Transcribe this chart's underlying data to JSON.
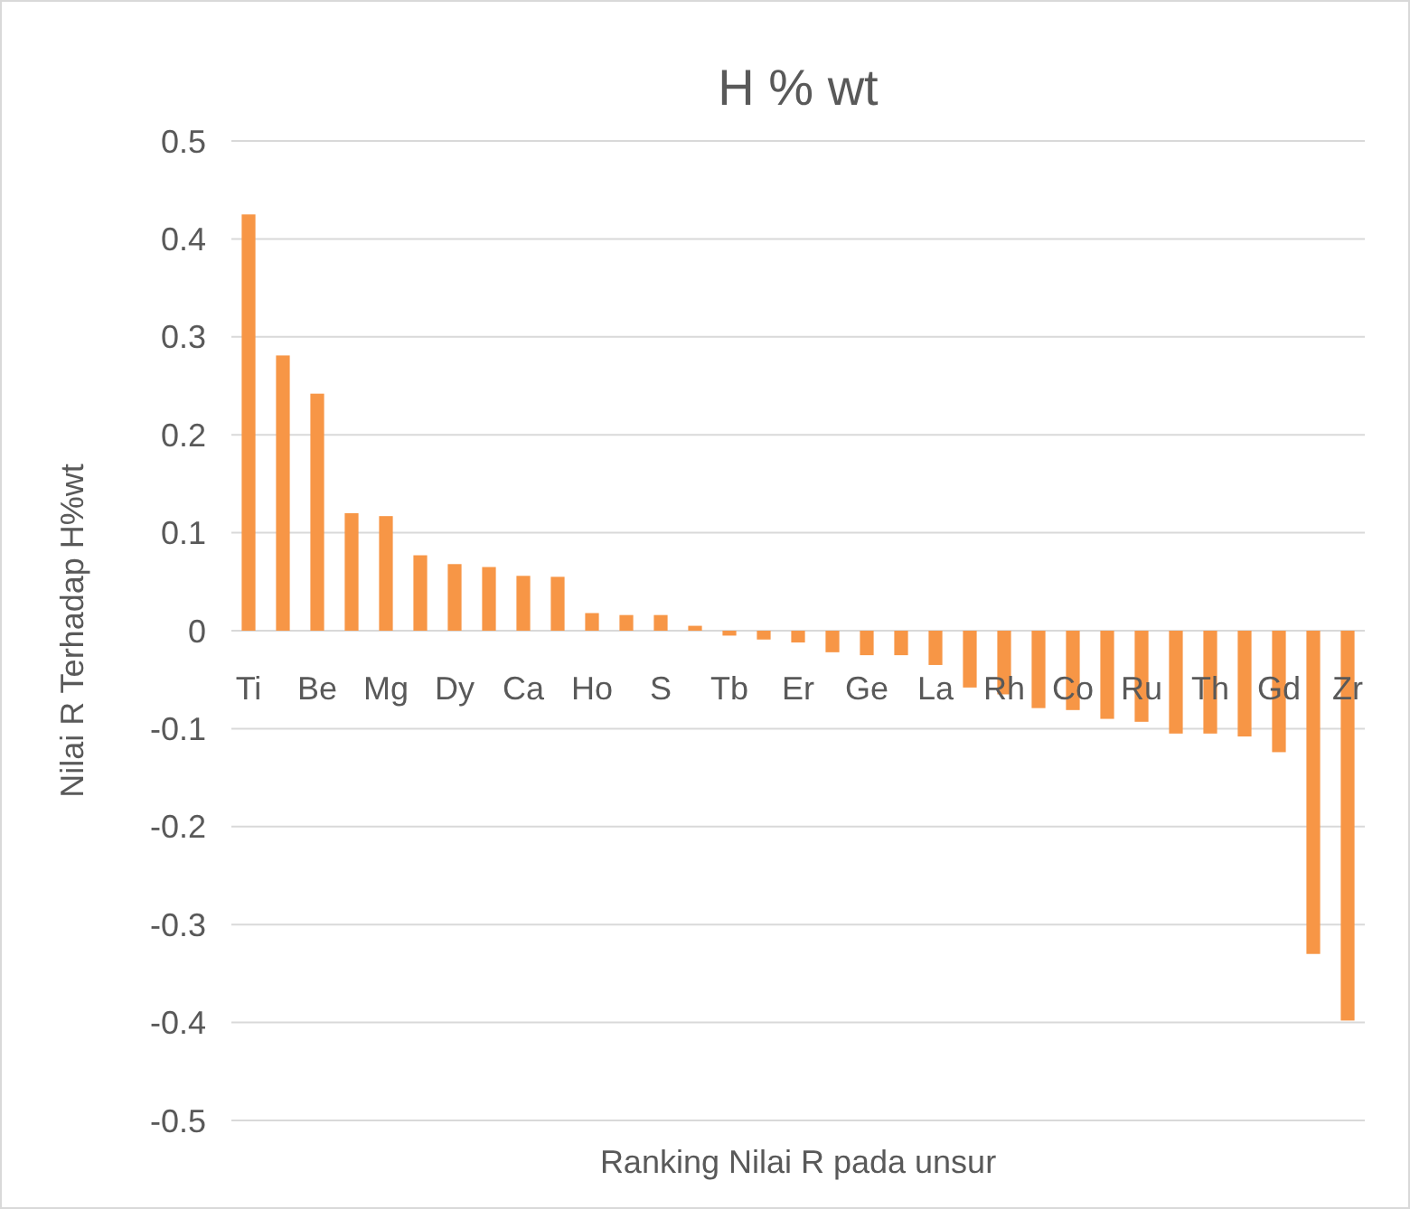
{
  "chart_data": {
    "type": "bar",
    "title": "H % wt",
    "xlabel": "Ranking Nilai R pada unsur",
    "ylabel": "Nilai R Terhadap H%wt",
    "categories": [
      "Ti",
      null,
      "Be",
      null,
      "Mg",
      null,
      "Dy",
      null,
      "Ca",
      null,
      "Ho",
      null,
      "S",
      null,
      "Tb",
      null,
      "Er",
      null,
      "Ge",
      null,
      "La",
      null,
      "Rh",
      null,
      "Co",
      null,
      "Ru",
      null,
      "Th",
      null,
      "Gd",
      null,
      "Zr"
    ],
    "series": [
      {
        "color": "#f79646",
        "values": [
          0.425,
          0.281,
          0.242,
          0.12,
          0.117,
          0.077,
          0.068,
          0.065,
          0.056,
          0.055,
          0.018,
          0.016,
          0.016,
          0.005,
          -0.005,
          -0.009,
          -0.012,
          -0.022,
          -0.025,
          -0.025,
          -0.035,
          -0.058,
          -0.065,
          -0.079,
          -0.081,
          -0.09,
          -0.093,
          -0.105,
          -0.105,
          -0.108,
          -0.124,
          -0.33,
          -0.398
        ]
      }
    ],
    "ylim": [
      -0.5,
      0.5
    ],
    "yticks": [
      -0.5,
      -0.4,
      -0.3,
      -0.2,
      -0.1,
      0,
      0.1,
      0.2,
      0.3,
      0.4,
      0.5
    ],
    "grid": "y"
  }
}
